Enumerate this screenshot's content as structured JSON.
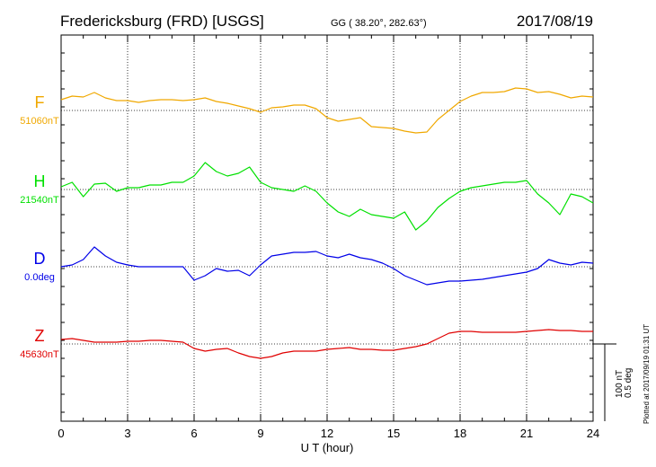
{
  "chart_data": {
    "type": "line",
    "title": "Fredericksburg (FRD)  [USGS]",
    "subtitle": "GG ( 38.20°, 282.63°)",
    "date": "2017/08/19",
    "xlabel": "U T (hour)",
    "xlim": [
      0,
      24
    ],
    "xticks": [
      0,
      3,
      6,
      9,
      12,
      15,
      18,
      21,
      24
    ],
    "grid": true,
    "scale_bar": {
      "line1": "100 nT",
      "line2": "0.5 deg"
    },
    "footer_note": "Plotted at 2017/09/19 01:31  UT",
    "series": [
      {
        "name": "F",
        "baseline_label": "51060nT",
        "color": "#f0a800",
        "x": [
          0,
          0.5,
          1,
          1.5,
          2,
          2.5,
          3,
          3.5,
          4,
          4.5,
          5,
          5.5,
          6,
          6.5,
          7,
          7.5,
          8,
          8.5,
          9,
          9.5,
          10,
          10.5,
          11,
          11.5,
          12,
          12.5,
          13,
          13.5,
          14,
          14.5,
          15,
          15.5,
          16,
          16.5,
          17,
          17.5,
          18,
          18.5,
          19,
          19.5,
          20,
          20.5,
          21,
          21.5,
          22,
          22.5,
          23,
          23.5,
          24
        ],
        "y": [
          12,
          16,
          15,
          20,
          14,
          11,
          11,
          9,
          11,
          12,
          12,
          11,
          12,
          14,
          10,
          8,
          5,
          2,
          -2,
          3,
          4,
          6,
          6,
          2,
          -8,
          -12,
          -10,
          -8,
          -18,
          -19,
          -20,
          -23,
          -25,
          -24,
          -10,
          0,
          10,
          16,
          20,
          20,
          21,
          25,
          24,
          20,
          21,
          18,
          14,
          16,
          15
        ]
      },
      {
        "name": "H",
        "baseline_label": "21540nT",
        "color": "#00e000",
        "x": [
          0,
          0.5,
          1,
          1.5,
          2,
          2.5,
          3,
          3.5,
          4,
          4.5,
          5,
          5.5,
          6,
          6.5,
          7,
          7.5,
          8,
          8.5,
          9,
          9.5,
          10,
          10.5,
          11,
          11.5,
          12,
          12.5,
          13,
          13.5,
          14,
          14.5,
          15,
          15.5,
          16,
          16.5,
          17,
          17.5,
          18,
          18.5,
          19,
          19.5,
          20,
          20.5,
          21,
          21.5,
          22,
          22.5,
          23,
          23.5,
          24
        ],
        "y": [
          3,
          8,
          -8,
          6,
          7,
          -2,
          2,
          2,
          5,
          5,
          8,
          8,
          15,
          30,
          20,
          15,
          18,
          25,
          8,
          2,
          0,
          -2,
          4,
          -2,
          -15,
          -25,
          -30,
          -22,
          -28,
          -30,
          -32,
          -25,
          -45,
          -35,
          -20,
          -10,
          -2,
          2,
          4,
          6,
          8,
          8,
          10,
          -5,
          -15,
          -28,
          -5,
          -8,
          -15
        ]
      },
      {
        "name": "D",
        "baseline_label": "0.0deg",
        "color": "#0000e8",
        "x": [
          0,
          0.5,
          1,
          1.5,
          2,
          2.5,
          3,
          3.5,
          4,
          4.5,
          5,
          5.5,
          6,
          6.5,
          7,
          7.5,
          8,
          8.5,
          9,
          9.5,
          10,
          10.5,
          11,
          11.5,
          12,
          12.5,
          13,
          13.5,
          14,
          14.5,
          15,
          15.5,
          16,
          16.5,
          17,
          17.5,
          18,
          18.5,
          19,
          19.5,
          20,
          20.5,
          21,
          21.5,
          22,
          22.5,
          23,
          23.5,
          24
        ],
        "y": [
          0,
          2,
          8,
          22,
          12,
          5,
          2,
          0,
          0,
          0,
          0,
          0,
          -15,
          -10,
          -2,
          -5,
          -4,
          -10,
          2,
          12,
          14,
          16,
          16,
          17,
          12,
          10,
          14,
          10,
          8,
          4,
          -2,
          -10,
          -15,
          -20,
          -18,
          -16,
          -16,
          -15,
          -14,
          -12,
          -10,
          -8,
          -6,
          -2,
          8,
          4,
          2,
          5,
          4
        ]
      },
      {
        "name": "Z",
        "baseline_label": "45630nT",
        "color": "#e00000",
        "x": [
          0,
          0.5,
          1,
          1.5,
          2,
          2.5,
          3,
          3.5,
          4,
          4.5,
          5,
          5.5,
          6,
          6.5,
          7,
          7.5,
          8,
          8.5,
          9,
          9.5,
          10,
          10.5,
          11,
          11.5,
          12,
          12.5,
          13,
          13.5,
          14,
          14.5,
          15,
          15.5,
          16,
          16.5,
          17,
          17.5,
          18,
          18.5,
          19,
          19.5,
          20,
          20.5,
          21,
          21.5,
          22,
          22.5,
          23,
          23.5,
          24
        ],
        "y": [
          5,
          6,
          4,
          2,
          2,
          2,
          3,
          3,
          4,
          4,
          3,
          2,
          -5,
          -8,
          -6,
          -5,
          -10,
          -14,
          -16,
          -14,
          -10,
          -8,
          -8,
          -8,
          -6,
          -5,
          -4,
          -6,
          -6,
          -7,
          -7,
          -5,
          -3,
          0,
          6,
          12,
          14,
          14,
          13,
          13,
          13,
          13,
          14,
          15,
          16,
          15,
          15,
          14,
          14
        ]
      }
    ]
  }
}
